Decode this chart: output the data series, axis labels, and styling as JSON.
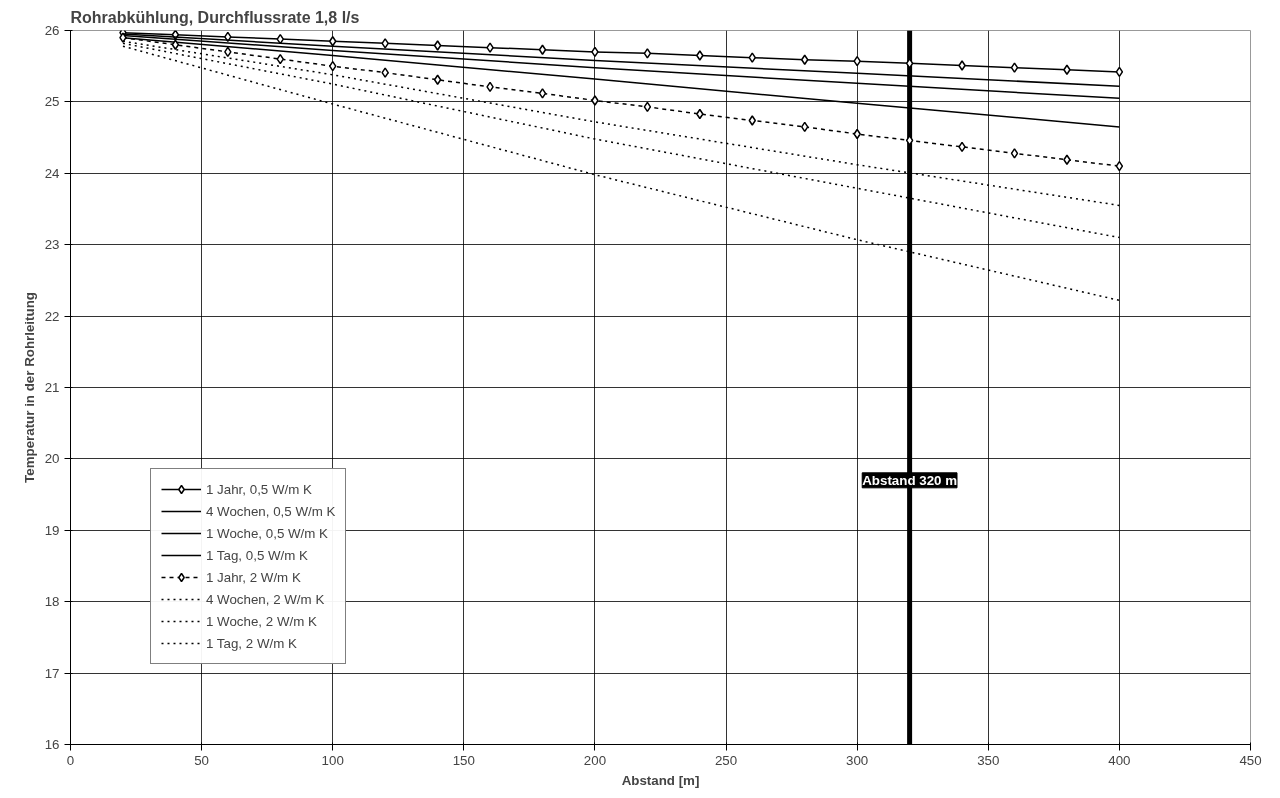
{
  "chart_data": {
    "type": "line",
    "title": "Rohrabkühlung, Durchflussrate 1,8 l/s",
    "xlabel": "Abstand [m]",
    "ylabel": "Temperatur in der Rohrleitung",
    "x": [
      20,
      40,
      60,
      80,
      100,
      120,
      140,
      160,
      180,
      200,
      220,
      240,
      260,
      280,
      300,
      320,
      340,
      360,
      380,
      400
    ],
    "series": [
      {
        "name": "1 Jahr, 0,5 W/m K",
        "color": "#000000",
        "marker": "diamond",
        "line_style": "solid",
        "values": [
          25.97,
          25.94,
          25.91,
          25.88,
          25.85,
          25.82,
          25.79,
          25.76,
          25.73,
          25.7,
          25.68,
          25.65,
          25.62,
          25.59,
          25.57,
          25.54,
          25.51,
          25.48,
          25.45,
          25.42
        ]
      },
      {
        "name": "4 Wochen, 0,5 W/m K",
        "color": "#000000",
        "marker": "none",
        "line_style": "solid",
        "x": [
          20,
          100,
          200,
          300,
          400
        ],
        "values": [
          25.95,
          25.78,
          25.58,
          25.4,
          25.22
        ]
      },
      {
        "name": "1 Woche, 0,5 W/m K",
        "color": "#000000",
        "marker": "none",
        "line_style": "solid",
        "x": [
          20,
          100,
          200,
          300,
          400
        ],
        "values": [
          25.93,
          25.72,
          25.48,
          25.26,
          25.05
        ]
      },
      {
        "name": "1 Tag, 0,5 W/m K",
        "color": "#000000",
        "marker": "none",
        "line_style": "solid",
        "x": [
          20,
          100,
          200,
          300,
          400
        ],
        "values": [
          25.9,
          25.65,
          25.32,
          24.98,
          24.65
        ]
      },
      {
        "name": "1 Jahr, 2 W/m K",
        "color": "#000000",
        "marker": "diamond",
        "line_style": "dashed",
        "values": [
          25.9,
          25.8,
          25.7,
          25.6,
          25.5,
          25.41,
          25.31,
          25.21,
          25.12,
          25.02,
          24.93,
          24.83,
          24.74,
          24.65,
          24.55,
          24.46,
          24.37,
          24.28,
          24.19,
          24.1
        ]
      },
      {
        "name": "4 Wochen, 2 W/m K",
        "color": "#000000",
        "marker": "none",
        "line_style": "dotted",
        "x": [
          20,
          100,
          200,
          300,
          400
        ],
        "values": [
          25.85,
          25.38,
          24.72,
          24.12,
          23.55
        ]
      },
      {
        "name": "1 Woche, 2 W/m K",
        "color": "#000000",
        "marker": "none",
        "line_style": "dotted",
        "x": [
          20,
          100,
          200,
          300,
          400
        ],
        "values": [
          25.82,
          25.25,
          24.48,
          23.79,
          23.1
        ]
      },
      {
        "name": "1 Tag, 2 W/m K",
        "color": "#000000",
        "marker": "none",
        "line_style": "dotted",
        "x": [
          20,
          100,
          200,
          300,
          400
        ],
        "values": [
          25.78,
          24.97,
          23.98,
          23.07,
          22.22
        ]
      }
    ],
    "ref_lines": [
      {
        "axis": "x",
        "value": 320,
        "label": "Abstand 320 m",
        "color": "#000000"
      }
    ],
    "xlim": [
      0,
      450
    ],
    "xticks": [
      0,
      50,
      100,
      150,
      200,
      250,
      300,
      350,
      400,
      450
    ],
    "ylim": [
      16,
      26
    ],
    "yticks": [
      16,
      17,
      18,
      19,
      20,
      21,
      22,
      23,
      24,
      25,
      26
    ],
    "grid": true,
    "legend": "bottom left"
  }
}
